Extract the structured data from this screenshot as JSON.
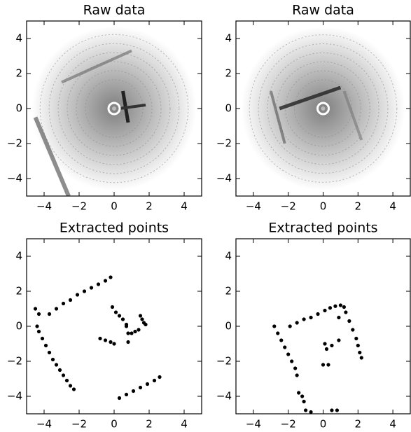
{
  "chart_data": [
    {
      "type": "image",
      "title": "Raw data",
      "xlim": [
        -5,
        5
      ],
      "ylim": [
        -5,
        5
      ],
      "xticks": [
        {
          "value": -4,
          "label": "−4"
        },
        {
          "value": -2,
          "label": "−2"
        },
        0,
        2,
        4
      ],
      "yticks": [
        {
          "value": -4,
          "label": "−4"
        },
        {
          "value": -2,
          "label": "−2"
        },
        0,
        2,
        4
      ]
    },
    {
      "type": "image",
      "title": "Raw data",
      "xlim": [
        -5,
        5
      ],
      "ylim": [
        -5,
        5
      ],
      "xticks": [
        {
          "value": -4,
          "label": "−4"
        },
        {
          "value": -2,
          "label": "−2"
        },
        0,
        2,
        4
      ],
      "yticks": [
        {
          "value": -4,
          "label": "−4"
        },
        {
          "value": -2,
          "label": "−2"
        },
        0,
        2,
        4
      ]
    },
    {
      "type": "scatter",
      "title": "Extracted points",
      "xlim": [
        -5,
        5
      ],
      "ylim": [
        -5,
        5
      ],
      "xticks": [
        {
          "value": -4,
          "label": "−4"
        },
        {
          "value": -2,
          "label": "−2"
        },
        0,
        2,
        4
      ],
      "yticks": [
        {
          "value": -4,
          "label": "−4"
        },
        {
          "value": -2,
          "label": "−2"
        },
        0,
        2,
        4
      ],
      "color": "#000000",
      "x": [
        -4.5,
        -4.3,
        -4.4,
        -4.3,
        -4.1,
        -3.9,
        -3.7,
        -3.5,
        -3.3,
        -3.1,
        -2.9,
        -2.7,
        -2.5,
        -2.3,
        -3.7,
        -3.3,
        -2.9,
        -2.5,
        -2.1,
        -1.7,
        -1.3,
        -0.9,
        -0.5,
        -0.2,
        0.3,
        0.7,
        1.1,
        1.5,
        1.9,
        2.3,
        2.6,
        -0.1,
        0.1,
        0.3,
        0.5,
        0.7,
        1.5,
        1.6,
        1.7,
        1.8,
        0.8,
        0.8,
        1.0,
        1.2,
        1.4,
        -0.8,
        -0.5,
        -0.2,
        0.0,
        0.7
      ],
      "y": [
        1.0,
        0.7,
        0.0,
        -0.3,
        -0.7,
        -1.1,
        -1.5,
        -1.9,
        -2.2,
        -2.5,
        -2.8,
        -3.1,
        -3.4,
        -3.6,
        0.7,
        1.0,
        1.3,
        1.5,
        1.8,
        2.0,
        2.2,
        2.4,
        2.6,
        2.8,
        -4.1,
        -3.9,
        -3.7,
        -3.5,
        -3.3,
        -3.1,
        -2.9,
        1.1,
        0.8,
        0.6,
        0.4,
        0.1,
        0.6,
        0.4,
        0.2,
        0.1,
        -0.4,
        -0.9,
        -0.4,
        -0.3,
        -0.2,
        -0.7,
        -0.8,
        -0.9,
        -1.0,
        0.0
      ]
    },
    {
      "type": "scatter",
      "title": "Extracted points",
      "xlim": [
        -5,
        5
      ],
      "ylim": [
        -5,
        5
      ],
      "xticks": [
        {
          "value": -4,
          "label": "−4"
        },
        {
          "value": -2,
          "label": "−2"
        },
        0,
        2,
        4
      ],
      "yticks": [
        {
          "value": -4,
          "label": "−4"
        },
        {
          "value": -2,
          "label": "−2"
        },
        0,
        2,
        4
      ],
      "color": "#000000",
      "x": [
        -1.9,
        -1.5,
        -1.1,
        -0.7,
        -0.3,
        0.1,
        0.4,
        0.7,
        1.0,
        1.2,
        1.3,
        1.5,
        1.7,
        1.9,
        2.0,
        2.1,
        2.2,
        -2.8,
        -2.6,
        -2.4,
        -2.2,
        -2.0,
        -1.8,
        -1.6,
        -1.5,
        -1.4,
        -1.2,
        -1.1,
        -1.0,
        -0.7,
        0.5,
        0.8,
        0.0,
        0.3,
        0.2,
        0.5,
        0.9,
        0.1,
        0.9
      ],
      "y": [
        0.0,
        0.2,
        0.4,
        0.5,
        0.7,
        0.9,
        1.05,
        1.15,
        1.2,
        1.1,
        0.8,
        0.3,
        -0.2,
        -0.7,
        -1.1,
        -1.5,
        -1.8,
        0.0,
        -0.4,
        -0.8,
        -1.2,
        -1.6,
        -2.0,
        -2.4,
        -2.8,
        -3.8,
        -4.0,
        -4.3,
        -4.8,
        -4.9,
        -4.8,
        -4.8,
        -2.2,
        -2.2,
        -1.3,
        -1.1,
        -0.8,
        -1.0,
        0.5
      ]
    }
  ]
}
